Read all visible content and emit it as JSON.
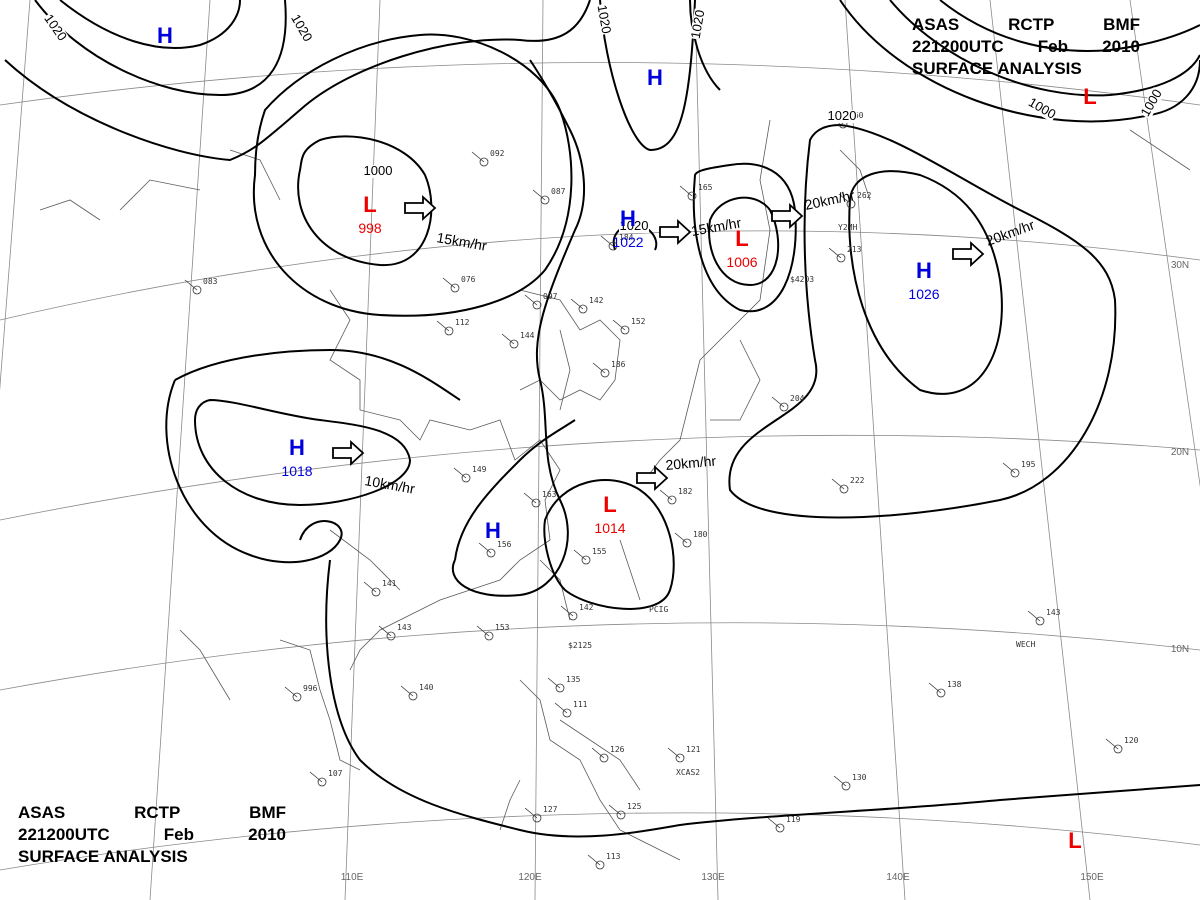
{
  "header_top": {
    "line1": [
      "ASAS",
      "RCTP",
      "BMF"
    ],
    "line2": [
      "221200UTC",
      "Feb",
      "2010"
    ],
    "line3": "SURFACE ANALYSIS"
  },
  "header_bottom": {
    "line1": [
      "ASAS",
      "RCTP",
      "BMF"
    ],
    "line2": [
      "221200UTC",
      "Feb",
      "2010"
    ],
    "line3": "SURFACE ANALYSIS"
  },
  "longitude_labels": [
    "110E",
    "120E",
    "130E",
    "140E",
    "150E"
  ],
  "latitude_labels": [
    "30N",
    "20N",
    "10N"
  ],
  "isobar_labels": [
    "1020",
    "1020",
    "1020",
    "1020",
    "1000",
    "1000",
    "1020",
    "1000",
    "1020"
  ],
  "pressure_systems": [
    {
      "type": "H",
      "value": ""
    },
    {
      "type": "L",
      "value": "998"
    },
    {
      "type": "H",
      "value": ""
    },
    {
      "type": "H",
      "value": "1022"
    },
    {
      "type": "L",
      "value": "1006"
    },
    {
      "type": "L",
      "value": ""
    },
    {
      "type": "H",
      "value": "1026"
    },
    {
      "type": "H",
      "value": "1018"
    },
    {
      "type": "H",
      "value": ""
    },
    {
      "type": "L",
      "value": "1014"
    },
    {
      "type": "L",
      "value": ""
    }
  ],
  "motion_vectors": [
    "15km/hr",
    "15km/hr",
    "20km/hr",
    "20km/hr",
    "10km/hr",
    "20km/hr"
  ],
  "station_samples": [
    "092",
    "087",
    "184",
    "165",
    "142",
    "152",
    "186",
    "144",
    "149",
    "163",
    "155",
    "156",
    "142",
    "153",
    "143",
    "141",
    "140",
    "996",
    "107",
    "135",
    "111",
    "126",
    "121",
    "125",
    "127",
    "113",
    "130",
    "138",
    "143",
    "120",
    "195",
    "222",
    "204",
    "182",
    "180",
    "083",
    "076",
    "112",
    "097",
    "060",
    "262",
    "213",
    "119"
  ],
  "station_codes": [
    "PCIG",
    "WECH",
    "XCAS2",
    "$2125",
    "$4203",
    "Y2MH"
  ],
  "colors": {
    "high": "#0000dd",
    "low": "#ee0000",
    "isobar": "#000000",
    "grid": "#8a8a8a",
    "coast": "#5a5a5a"
  }
}
